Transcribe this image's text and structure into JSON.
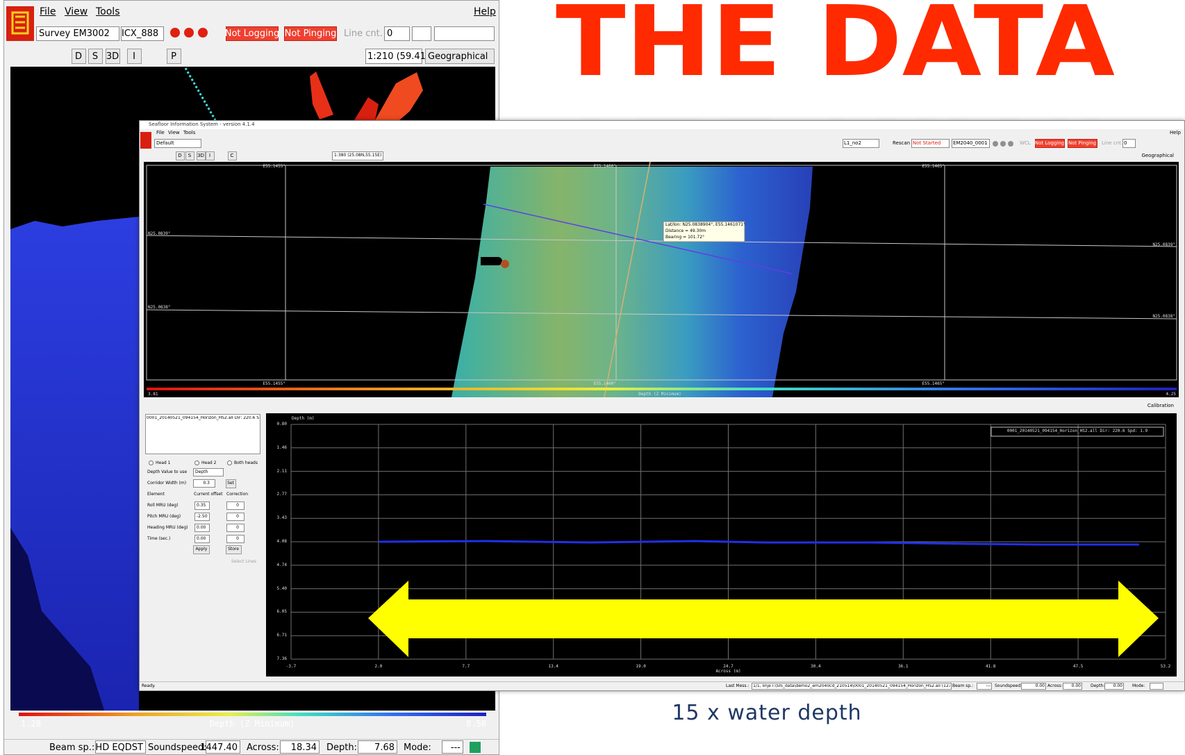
{
  "title": "THE DATA",
  "caption": "15 x water depth",
  "back_window": {
    "menu": [
      "File",
      "View",
      "Tools",
      "Help"
    ],
    "survey": "Survey EM3002",
    "sensor": "ICX_888",
    "not_logging": "Not Logging",
    "not_pinging": "Not Pinging",
    "line_cnt": "Line cnt.",
    "line_cnt_value": "0",
    "toolbar_buttons": [
      "D",
      "S",
      "3D",
      "I",
      "P"
    ],
    "scale": "1:210 (59.41N,",
    "projection": "Geographical",
    "colorbar": {
      "min": "1.20",
      "label": "Depth (Z Minimum)",
      "max": "8.50"
    },
    "status": [
      {
        "label": "Beam sp.:",
        "value": "HD EQDST"
      },
      {
        "label": "Soundspeed:",
        "value": "1447.40"
      },
      {
        "label": "Across:",
        "value": "18.34"
      },
      {
        "label": "Depth:",
        "value": "7.68"
      },
      {
        "label": "Mode:",
        "value": "---"
      }
    ]
  },
  "front_window": {
    "title_bar": "Seafloor Information System - version 4.1.4",
    "menu": [
      "File",
      "View",
      "Tools",
      "Help"
    ],
    "preset": "Default",
    "line": "L1_no2",
    "rescan": "Rescan",
    "not_started": "Not Started",
    "sounder": "EM2040_0001",
    "wcl": "WCL",
    "not_logging": "Not Logging",
    "not_pinging": "Not Pinging",
    "line_cnt": "Line cnt.",
    "line_cnt_value": "0",
    "toolbar_buttons": [
      "D",
      "S",
      "3D",
      "I",
      "C"
    ],
    "scale": "1:380 (25.08N,55.15E)",
    "projection": "Geographical",
    "map": {
      "lon_labels": [
        "E55.1455°",
        "E55.1460°",
        "E55.1465°"
      ],
      "lat_labels": [
        "N25.0839°",
        "N25.0838°"
      ],
      "tooltip": [
        "Lat/lon: N25.0838904°, E55.1461071°",
        "Distance = 49.30m",
        "Bearing = 101.72°"
      ],
      "colorbar": {
        "min": "3.81",
        "label": "Depth (Z Minimum)",
        "max": "4.25"
      }
    },
    "calibration": "Calibration",
    "panel": {
      "file": "0001_20140521_094154_Horizon_HS2.all Dir: 220.6 Sp",
      "heads": [
        "Head 1",
        "Head 2",
        "Both heads"
      ],
      "depth_value_label": "Depth Value to use",
      "depth_value": "Depth",
      "corridor_label": "Corridor Width (m)",
      "corridor_value": "0.3",
      "set": "Set",
      "columns": [
        "Element",
        "Current offset",
        "Correction"
      ],
      "rows": [
        [
          "Roll MRU (deg)",
          "0.35",
          "0"
        ],
        [
          "Pitch MRU (deg)",
          "-2.50",
          "0"
        ],
        [
          "Heading MRU (deg)",
          "0.00",
          "0"
        ],
        [
          "Time (sec.)",
          "0.00",
          "0"
        ]
      ],
      "apply": "Apply",
      "store": "Store",
      "select_lines": "Select Lines"
    },
    "plot": {
      "y_label": "Depth (m)",
      "yticks": [
        "0.80",
        "1.46",
        "2.11",
        "2.77",
        "3.43",
        "4.08",
        "4.74",
        "5.40",
        "6.05",
        "6.71",
        "7.36"
      ],
      "xticks": [
        "-3.7",
        "2.0",
        "7.7",
        "13.4",
        "19.0",
        "24.7",
        "30.4",
        "36.1",
        "41.8",
        "47.5",
        "53.2"
      ],
      "x_label": "Across (m)",
      "legend": "0001_20140521_094154_Horizon_HS2.all Dir: 220.6 Spd: 1.9"
    },
    "status": {
      "ready": "Ready.",
      "last_mess_label": "Last Mess.:",
      "last_mess": "1/1, linje l:\\SIS_data\\demo2_em2040cd_210514\\0001_20140521_094154_Horizon_HS2.all (123",
      "fields": [
        {
          "label": "Beam sp.:",
          "value": "---"
        },
        {
          "label": "Soundspeed:",
          "value": "0.00"
        },
        {
          "label": "Across:",
          "value": "0.00"
        },
        {
          "label": "Depth:",
          "value": "0.00"
        },
        {
          "label": "Mode:"
        }
      ]
    }
  }
}
